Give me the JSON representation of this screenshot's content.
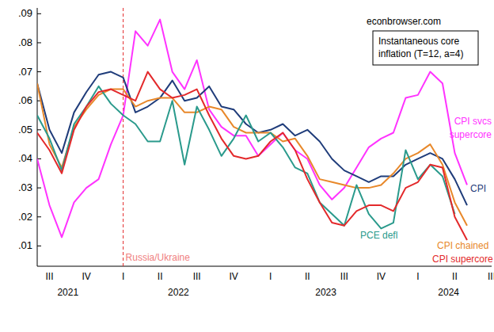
{
  "chart_data": {
    "type": "line",
    "title": "Instantaneous core inflation (T=12, a=4)",
    "annotations": [
      {
        "text": "econbrowser.com"
      },
      {
        "text": "Russia/Ukraine",
        "at": 7
      }
    ],
    "categories": [
      null,
      "III",
      null,
      null,
      "IV",
      null,
      null,
      "I",
      null,
      null,
      "II",
      null,
      null,
      "III",
      null,
      null,
      "IV",
      null,
      null,
      "I",
      null,
      null,
      "II",
      null,
      null,
      "III",
      null,
      null,
      "IV",
      null,
      null,
      "I",
      null,
      null,
      "II",
      null,
      null,
      "III"
    ],
    "x_groups": [
      {
        "label": "2021",
        "start": 0,
        "end": 5
      },
      {
        "label": "2022",
        "start": 6,
        "end": 17
      },
      {
        "label": "2023",
        "start": 18,
        "end": 29
      },
      {
        "label": "2024",
        "start": 30,
        "end": 37
      }
    ],
    "series": [
      {
        "name": "CPI svcs supercore",
        "color": "#ff33ff",
        "values": [
          0.04,
          0.024,
          0.013,
          0.025,
          0.03,
          0.033,
          0.045,
          0.055,
          0.084,
          0.079,
          0.088,
          0.07,
          0.064,
          0.074,
          0.057,
          0.051,
          0.048,
          0.048,
          0.041,
          0.045,
          0.049,
          0.043,
          0.04,
          0.031,
          0.026,
          0.03,
          0.037,
          0.044,
          0.047,
          0.049,
          0.061,
          0.062,
          0.07,
          0.066,
          0.042,
          0.031,
          null,
          null
        ]
      },
      {
        "name": "CPI",
        "color": "#1f3c7a",
        "values": [
          0.066,
          0.05,
          0.042,
          0.056,
          0.063,
          0.069,
          0.07,
          0.068,
          0.056,
          0.058,
          0.061,
          0.067,
          0.06,
          0.061,
          0.065,
          0.058,
          0.057,
          0.052,
          0.049,
          0.05,
          0.052,
          0.048,
          0.05,
          0.046,
          0.04,
          0.036,
          0.034,
          0.032,
          0.034,
          0.034,
          0.038,
          0.04,
          0.042,
          0.04,
          0.033,
          0.024,
          null,
          null
        ]
      },
      {
        "name": "CPI chained",
        "color": "#e8882a",
        "values": [
          0.066,
          0.045,
          0.037,
          0.051,
          0.057,
          0.062,
          0.064,
          0.064,
          0.058,
          0.06,
          0.061,
          0.061,
          0.056,
          0.056,
          0.058,
          0.057,
          0.051,
          0.049,
          0.049,
          0.049,
          0.046,
          0.047,
          0.041,
          0.033,
          0.032,
          0.031,
          0.03,
          0.03,
          0.031,
          0.035,
          0.04,
          0.042,
          0.045,
          0.038,
          0.025,
          0.017,
          null,
          null
        ]
      },
      {
        "name": "PCE defl",
        "color": "#2a9a8c",
        "values": [
          0.055,
          0.047,
          0.036,
          0.052,
          0.058,
          0.065,
          0.059,
          0.055,
          0.052,
          0.046,
          0.046,
          0.06,
          0.038,
          0.058,
          0.05,
          0.041,
          0.047,
          0.055,
          0.046,
          0.049,
          0.044,
          0.037,
          0.035,
          0.025,
          0.021,
          0.017,
          0.031,
          0.021,
          0.016,
          0.018,
          0.043,
          0.033,
          0.038,
          0.034,
          0.021,
          null,
          null,
          null
        ]
      },
      {
        "name": "CPI supercore",
        "color": "#e3292b",
        "values": [
          0.049,
          0.043,
          0.035,
          0.05,
          0.058,
          0.063,
          0.064,
          0.062,
          0.06,
          0.07,
          0.064,
          0.061,
          0.062,
          0.064,
          0.055,
          0.047,
          0.041,
          0.04,
          0.041,
          0.046,
          0.049,
          0.043,
          0.033,
          0.025,
          0.018,
          0.017,
          0.022,
          0.024,
          0.024,
          0.022,
          0.03,
          0.032,
          0.038,
          0.037,
          0.02,
          0.012,
          null,
          null
        ]
      }
    ],
    "ylim": [
      0.003,
      0.092
    ],
    "yticks": [
      {
        "value": 0.01,
        "label": ".01"
      },
      {
        "value": 0.02,
        "label": ".02"
      },
      {
        "value": 0.03,
        "label": ".03"
      },
      {
        "value": 0.04,
        "label": ".04"
      },
      {
        "value": 0.05,
        "label": ".05"
      },
      {
        "value": 0.06,
        "label": ".06"
      },
      {
        "value": 0.07,
        "label": ".07"
      },
      {
        "value": 0.08,
        "label": ".08"
      },
      {
        "value": 0.09,
        "label": ".09"
      }
    ],
    "grid": false
  }
}
